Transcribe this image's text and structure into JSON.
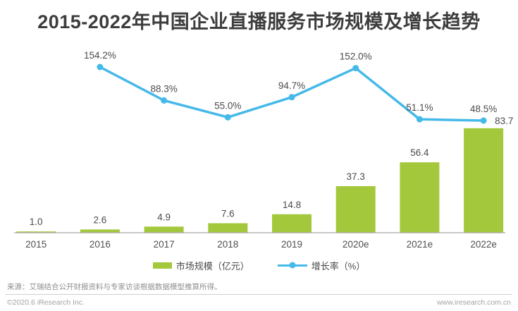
{
  "title": "2015-2022年中国企业直播服务市场规模及增长趋势",
  "chart_data": {
    "type": "bar+line",
    "title": "2015-2022年中国企业直播服务市场规模及增长趋势",
    "categories": [
      "2015",
      "2016",
      "2017",
      "2018",
      "2019",
      "2020e",
      "2021e",
      "2022e"
    ],
    "series": [
      {
        "name": "市场规模（亿元）",
        "type": "bar",
        "color": "#a3c83c",
        "values": [
          1.0,
          2.6,
          4.9,
          7.6,
          14.8,
          37.3,
          56.4,
          83.7
        ],
        "labels": [
          "1.0",
          "2.6",
          "4.9",
          "7.6",
          "14.8",
          "37.3",
          "56.4",
          "83.7"
        ]
      },
      {
        "name": "增长率（%）",
        "type": "line",
        "color": "#45b9e8",
        "values": [
          null,
          154.2,
          88.3,
          55.0,
          94.7,
          152.0,
          51.1,
          48.5
        ],
        "labels": [
          null,
          "154.2%",
          "88.3%",
          "55.0%",
          "94.7%",
          "152.0%",
          "51.1%",
          "48.5%"
        ]
      }
    ],
    "xlabel": "",
    "ylabel": "",
    "legend_position": "bottom",
    "gridlines": false,
    "value_axes_hidden": true
  },
  "footer": {
    "source": "来源：艾瑞结合公开财报资料与专家访谈根据数据模型推算所得。",
    "copyright": "©2020.6 iResearch Inc.",
    "website": "www.iresearch.com.cn"
  },
  "colors": {
    "bar": "#a3c83c",
    "line": "#45b9e8",
    "title_text": "#3d3d3d",
    "axis_line": "#a6a6a6",
    "data_label": "#4b4b4b"
  }
}
